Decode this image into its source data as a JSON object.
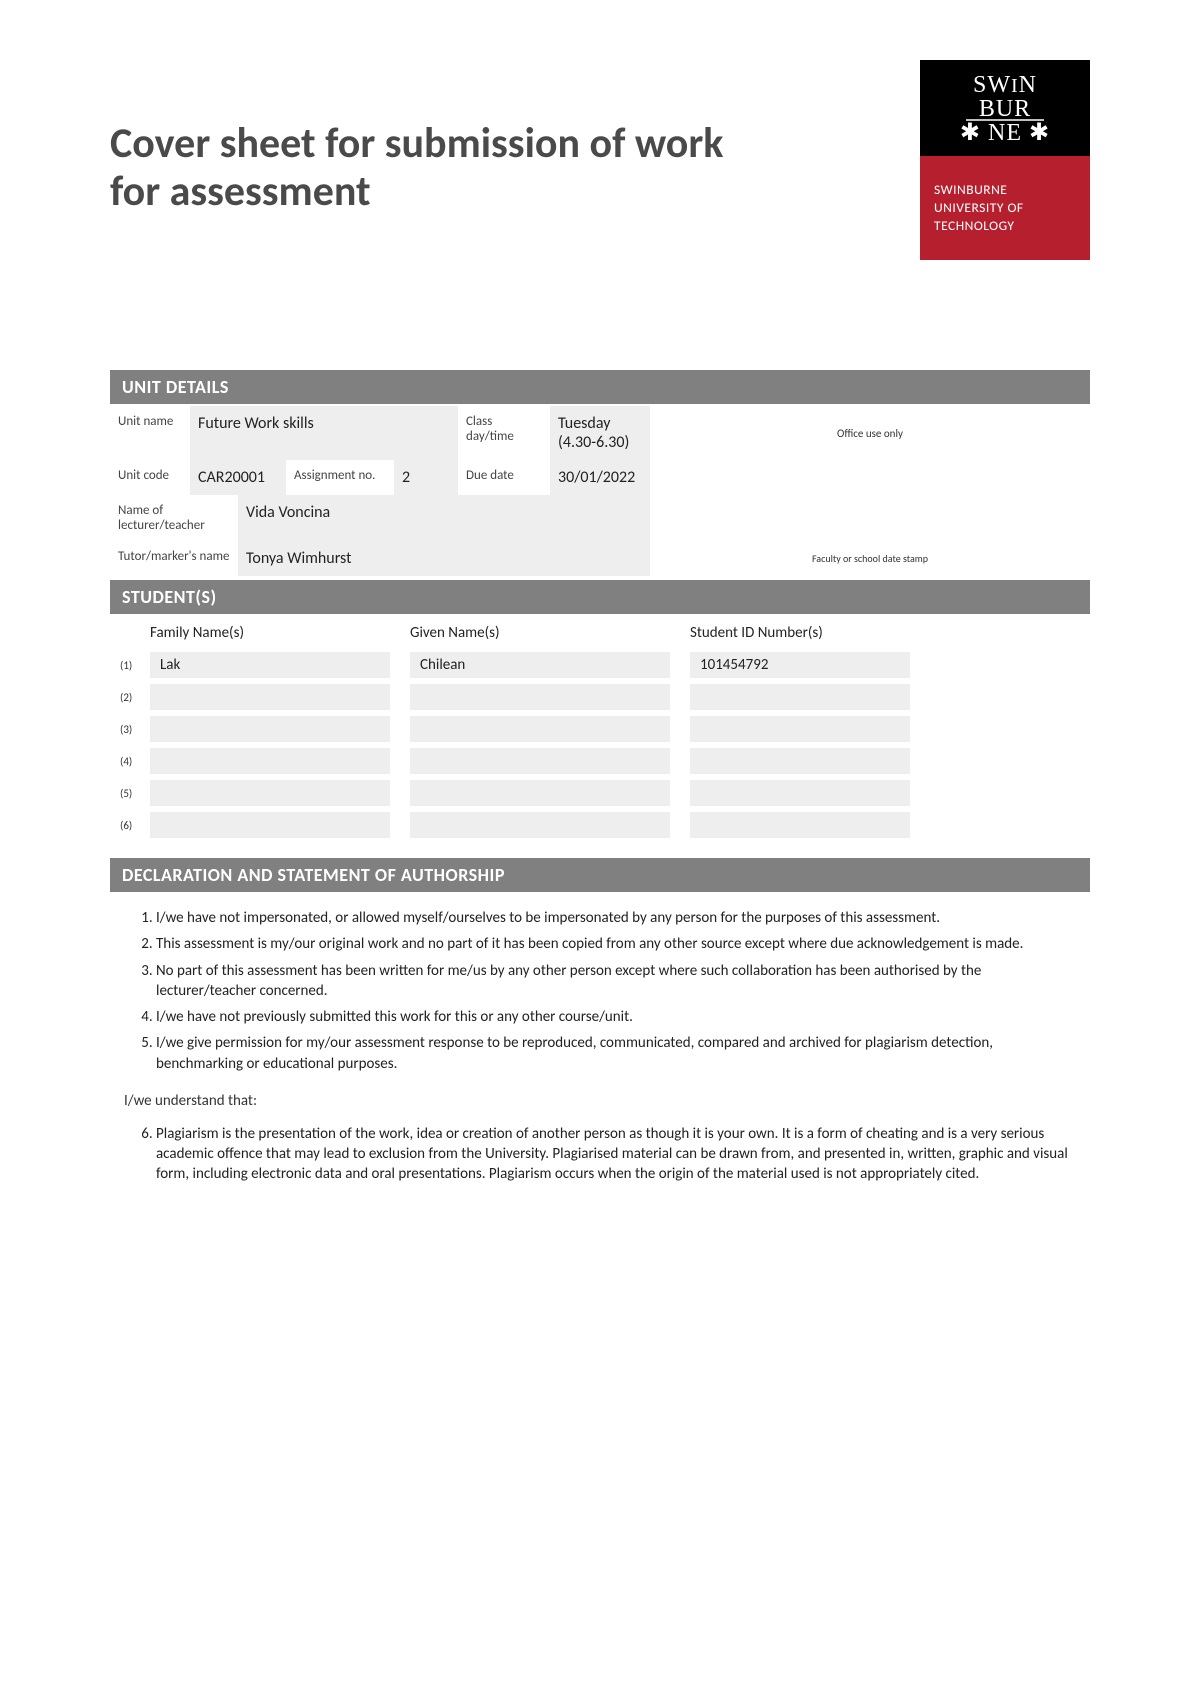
{
  "title": "Cover sheet for submission of work for assessment",
  "logo": {
    "line1": "SWINBURNE",
    "line2": "UNIVERSITY OF",
    "line3": "TECHNOLOGY",
    "bg_top": "#000000",
    "bg_bottom": "#b6202e"
  },
  "sections": {
    "unit": "UNIT DETAILS",
    "students": "STUDENT(S)",
    "declaration": "DECLARATION AND STATEMENT OF AUTHORSHIP"
  },
  "unit": {
    "labels": {
      "unit_name": "Unit name",
      "class_daytime": "Class day/time",
      "office_use": "Office use only",
      "unit_code": "Unit code",
      "assignment_no": "Assignment no.",
      "due_date": "Due date",
      "lecturer": "Name of lecturer/teacher",
      "tutor": "Tutor/marker's name",
      "faculty_stamp": "Faculty or school date stamp"
    },
    "unit_name": "Future Work skills",
    "class_daytime": "Tuesday (4.30-6.30)",
    "unit_code": "CAR20001",
    "assignment_no": "2",
    "due_date": "30/01/2022",
    "lecturer": "Vida Voncina",
    "tutor": "Tonya Wimhurst"
  },
  "students": {
    "headers": {
      "family": "Family Name(s)",
      "given": "Given Name(s)",
      "id": "Student ID Number(s)"
    },
    "rows": [
      {
        "n": "(1)",
        "family": "Lak",
        "given": "Chilean",
        "id": "101454792"
      },
      {
        "n": "(2)",
        "family": "",
        "given": "",
        "id": ""
      },
      {
        "n": "(3)",
        "family": "",
        "given": "",
        "id": ""
      },
      {
        "n": "(4)",
        "family": "",
        "given": "",
        "id": ""
      },
      {
        "n": "(5)",
        "family": "",
        "given": "",
        "id": ""
      },
      {
        "n": "(6)",
        "family": "",
        "given": "",
        "id": ""
      }
    ]
  },
  "declaration": {
    "items": [
      "I/we have not impersonated, or allowed myself/ourselves to be impersonated by any person for the purposes of this assessment.",
      "This assessment is my/our original work and no part of it has been copied from any other source except where due acknowledgement is made.",
      "No part of this assessment has been written for me/us by any other person except where such collaboration has been authorised by the lecturer/teacher concerned.",
      "I/we have not previously submitted this work for this or any other course/unit.",
      "I/we  give permission for my/our assessment response to be reproduced, communicated, compared and archived for plagiarism detection, benchmarking or educational purposes."
    ],
    "understand_label": "I/we understand that:",
    "item6": "Plagiarism is the presentation of the work, idea or creation of another person as though it is your own. It is a form of cheating and is a very serious academic offence that may lead to exclusion from the University. Plagiarised material can be drawn from, and presented in, written, graphic and visual form, including electronic data and oral presentations. Plagiarism occurs when the origin of the material used is not appropriately cited."
  },
  "colors": {
    "section_bg": "#808080",
    "cell_grey": "#eeeeee"
  }
}
